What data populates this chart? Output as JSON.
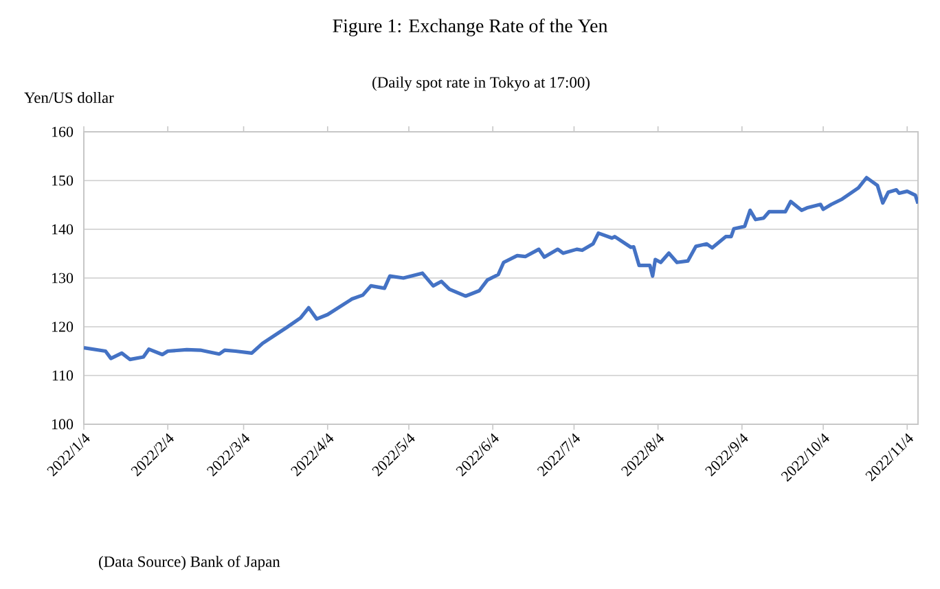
{
  "chart_data": {
    "type": "line",
    "title": "Figure 1: Exchange Rate of the Yen",
    "subtitle": "(Daily spot rate in Tokyo at 17:00)",
    "ylabel": "Yen/US dollar",
    "annotations": [
      "(Data Source) Bank of Japan"
    ],
    "x": [
      "2022-01-04",
      "2022-01-12",
      "2022-01-14",
      "2022-01-18",
      "2022-01-21",
      "2022-01-26",
      "2022-01-28",
      "2022-02-02",
      "2022-02-04",
      "2022-02-11",
      "2022-02-16",
      "2022-02-23",
      "2022-02-25",
      "2022-03-01",
      "2022-03-07",
      "2022-03-11",
      "2022-03-20",
      "2022-03-25",
      "2022-03-28",
      "2022-03-31",
      "2022-04-04",
      "2022-04-13",
      "2022-04-17",
      "2022-04-20",
      "2022-04-25",
      "2022-04-27",
      "2022-05-02",
      "2022-05-09",
      "2022-05-13",
      "2022-05-16",
      "2022-05-19",
      "2022-05-25",
      "2022-05-30",
      "2022-06-02",
      "2022-06-06",
      "2022-06-08",
      "2022-06-13",
      "2022-06-16",
      "2022-06-21",
      "2022-06-23",
      "2022-06-28",
      "2022-06-30",
      "2022-07-05",
      "2022-07-07",
      "2022-07-11",
      "2022-07-13",
      "2022-07-18",
      "2022-07-19",
      "2022-07-25",
      "2022-07-26",
      "2022-07-28",
      "2022-08-01",
      "2022-08-02",
      "2022-08-03",
      "2022-08-05",
      "2022-08-08",
      "2022-08-11",
      "2022-08-15",
      "2022-08-18",
      "2022-08-22",
      "2022-08-24",
      "2022-08-29",
      "2022-08-31",
      "2022-09-01",
      "2022-09-05",
      "2022-09-07",
      "2022-09-09",
      "2022-09-12",
      "2022-09-14",
      "2022-09-20",
      "2022-09-22",
      "2022-09-26",
      "2022-09-28",
      "2022-10-03",
      "2022-10-04",
      "2022-10-07",
      "2022-10-11",
      "2022-10-17",
      "2022-10-20",
      "2022-10-24",
      "2022-10-26",
      "2022-10-28",
      "2022-10-31",
      "2022-11-01",
      "2022-11-04",
      "2022-11-07",
      "2022-11-08"
    ],
    "series": [
      {
        "color": "#4472c4",
        "values": [
          115.7,
          115.0,
          113.5,
          114.6,
          113.3,
          113.8,
          115.4,
          114.3,
          115.0,
          115.3,
          115.2,
          114.4,
          115.2,
          115.0,
          114.6,
          116.6,
          119.9,
          121.8,
          123.9,
          121.6,
          122.5,
          125.7,
          126.5,
          128.4,
          127.9,
          130.4,
          130.0,
          131.0,
          128.4,
          129.3,
          127.7,
          126.3,
          127.4,
          129.6,
          130.7,
          133.2,
          134.6,
          134.4,
          135.9,
          134.3,
          135.9,
          135.1,
          135.9,
          135.7,
          137.0,
          139.2,
          138.2,
          138.5,
          136.3,
          136.4,
          132.6,
          132.6,
          130.4,
          133.8,
          133.2,
          135.1,
          133.2,
          133.5,
          136.5,
          137.0,
          136.2,
          138.5,
          138.5,
          140.1,
          140.6,
          143.9,
          142.0,
          142.3,
          143.6,
          143.6,
          145.7,
          143.9,
          144.4,
          145.1,
          144.1,
          145.1,
          146.2,
          148.5,
          150.6,
          149.0,
          145.4,
          147.6,
          148.1,
          147.4,
          147.8,
          147.0,
          145.3
        ]
      }
    ],
    "xlim": [
      "2022-01-04",
      "2022-11-08"
    ],
    "xticks": [
      {
        "value": "2022-01-04",
        "label": "2022/1/4"
      },
      {
        "value": "2022-02-04",
        "label": "2022/2/4"
      },
      {
        "value": "2022-03-04",
        "label": "2022/3/4"
      },
      {
        "value": "2022-04-04",
        "label": "2022/4/4"
      },
      {
        "value": "2022-05-04",
        "label": "2022/5/4"
      },
      {
        "value": "2022-06-04",
        "label": "2022/6/4"
      },
      {
        "value": "2022-07-04",
        "label": "2022/7/4"
      },
      {
        "value": "2022-08-04",
        "label": "2022/8/4"
      },
      {
        "value": "2022-09-04",
        "label": "2022/9/4"
      },
      {
        "value": "2022-10-04",
        "label": "2022/10/4"
      },
      {
        "value": "2022-11-04",
        "label": "2022/11/4"
      }
    ],
    "ylim": [
      100,
      160
    ],
    "yticks": [
      100,
      110,
      120,
      130,
      140,
      150,
      160
    ],
    "grid": "y",
    "legend": false,
    "marker": "none",
    "line_style": "solid"
  }
}
